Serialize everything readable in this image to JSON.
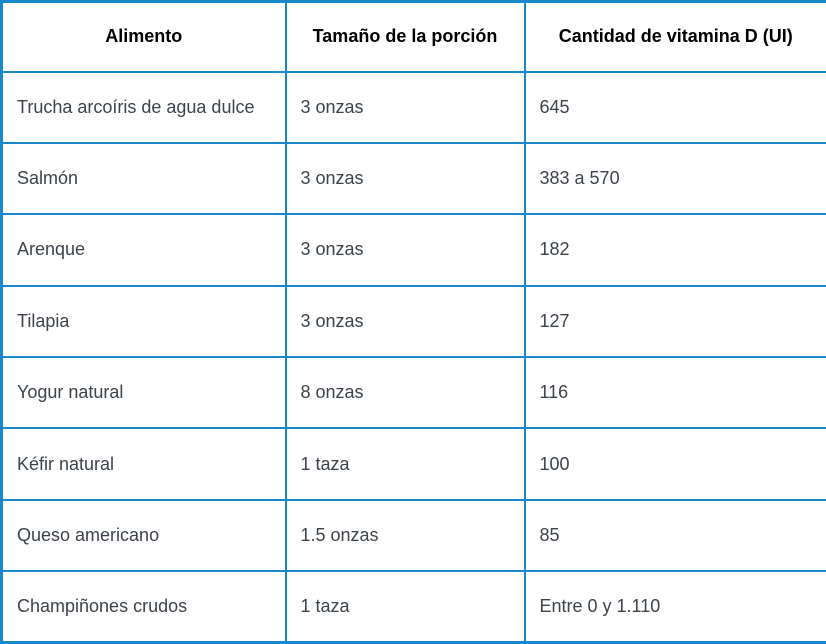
{
  "chart_data": {
    "type": "table",
    "title": "",
    "columns": [
      "Alimento",
      "Tamaño de la porción",
      "Cantidad de vitamina D (UI)"
    ],
    "rows": [
      [
        "Trucha arcoíris de agua dulce",
        "3 onzas",
        "645"
      ],
      [
        "Salmón",
        "3 onzas",
        "383 a 570"
      ],
      [
        "Arenque",
        "3 onzas",
        "182"
      ],
      [
        "Tilapia",
        "3 onzas",
        "127"
      ],
      [
        "Yogur natural",
        "8 onzas",
        "116"
      ],
      [
        "Kéfir natural",
        "1 taza",
        "100"
      ],
      [
        "Queso americano",
        "1.5 onzas",
        "85"
      ],
      [
        "Champiñones crudos",
        "1 taza",
        "Entre 0 y 1.110"
      ]
    ],
    "layout": {
      "legend": "none",
      "grid": "full-borders"
    }
  },
  "colors": {
    "border": "#1788c9",
    "header_text": "#000000",
    "body_text": "#3c434a",
    "background": "#ffffff"
  }
}
